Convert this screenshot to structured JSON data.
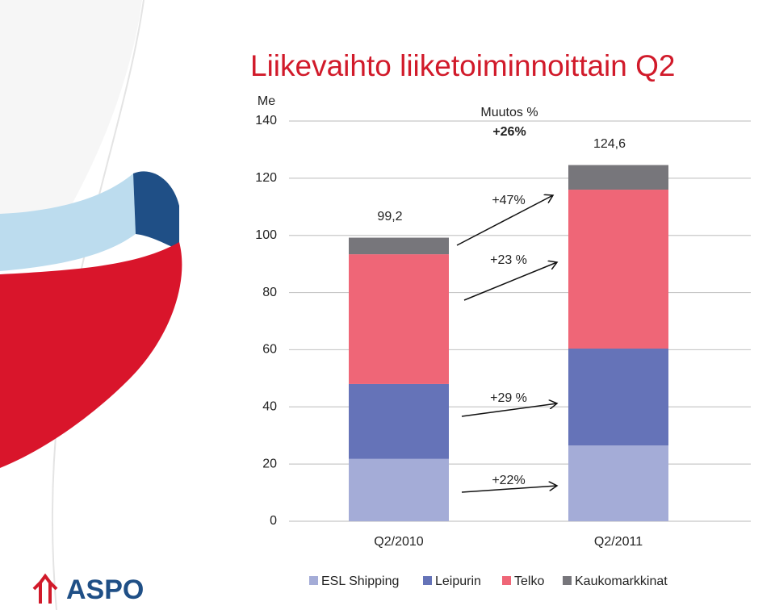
{
  "chart_data": {
    "type": "bar",
    "stacked": true,
    "title": "Liikevaihto liiketoiminnoittain Q2",
    "y_label": "Me",
    "categories": [
      "Q2/2010",
      "Q2/2011"
    ],
    "series": [
      {
        "name": "ESL Shipping",
        "color": "#a4acd7",
        "values": [
          21.8,
          26.5
        ]
      },
      {
        "name": "Leipurin",
        "color": "#6573b8",
        "values": [
          26.2,
          33.9
        ]
      },
      {
        "name": "Telko",
        "color": "#ef6677",
        "values": [
          45.4,
          55.6
        ]
      },
      {
        "name": "Kaukomarkkinat",
        "color": "#77767b",
        "values": [
          5.8,
          8.6
        ]
      }
    ],
    "totals": [
      99.2,
      124.6
    ],
    "total_labels": [
      "99,2",
      "124,6"
    ],
    "annotations": [
      "Muutos %",
      "+26%",
      "+47%",
      "+23 %",
      "+29 %",
      "+22%"
    ],
    "ylim": [
      0,
      140
    ],
    "yticks": [
      0,
      20,
      40,
      60,
      80,
      100,
      120,
      140
    ],
    "grid": true,
    "logo": "ASPO"
  }
}
